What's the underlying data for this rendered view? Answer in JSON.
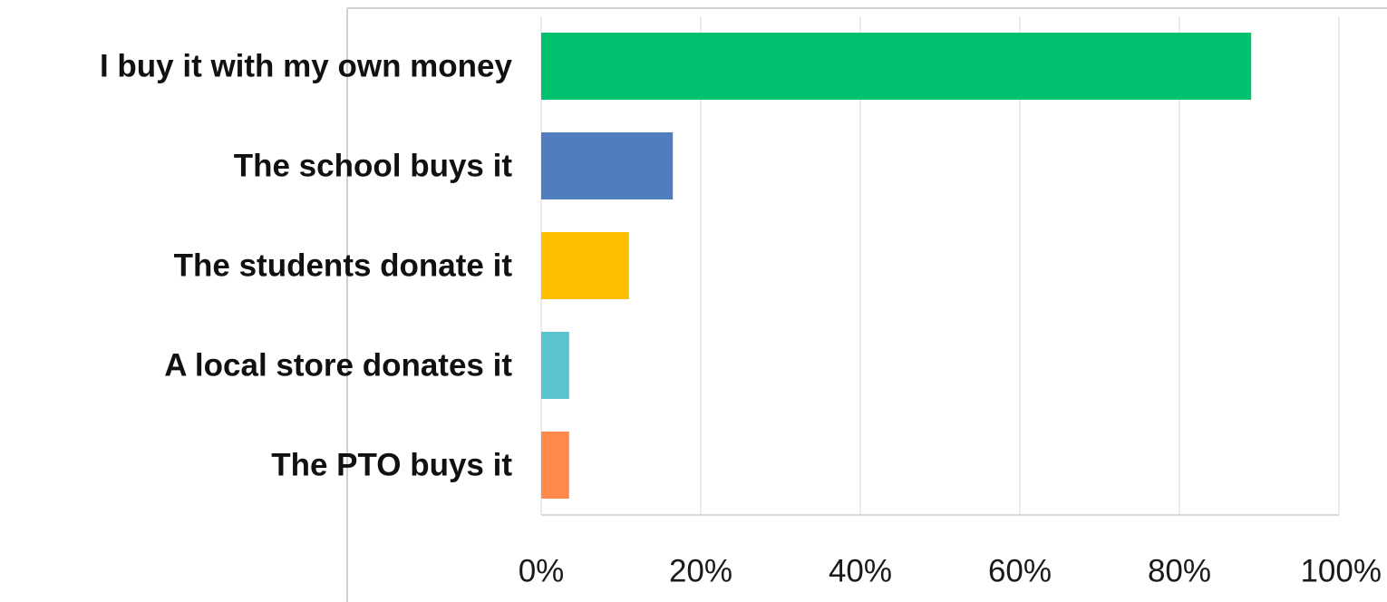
{
  "chart_data": {
    "type": "bar",
    "orientation": "horizontal",
    "categories": [
      "I buy it with my own money",
      "The school buys it",
      "The students donate it",
      "A local store donates it",
      "The PTO buys it"
    ],
    "values": [
      89,
      16.5,
      11,
      3.5,
      3.5
    ],
    "colors": [
      "#00C16E",
      "#4F7DBD",
      "#FBBF00",
      "#5BC4D1",
      "#FF8A4C"
    ],
    "xlim": [
      0,
      100
    ],
    "xticks": [
      "0%",
      "20%",
      "40%",
      "60%",
      "80%",
      "100%"
    ],
    "grid": true,
    "title": "",
    "xlabel": "",
    "ylabel": ""
  }
}
